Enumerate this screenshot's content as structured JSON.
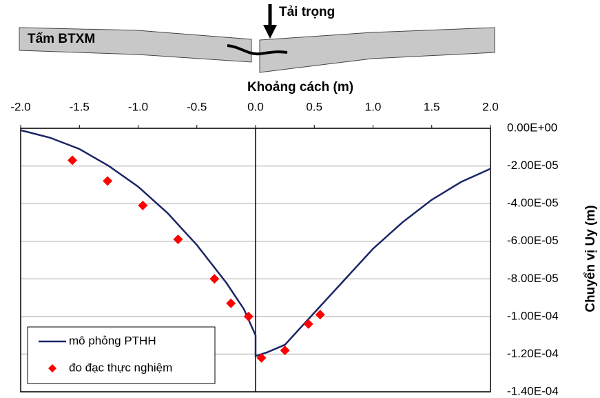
{
  "chart_data": {
    "type": "line-scatter",
    "annotations": [
      "Tấm BTXM",
      "Tải trọng"
    ],
    "xlabel": "Khoảng cách (m)",
    "ylabel": "Chuyển vị Uy (m)",
    "xlim": [
      -2,
      2
    ],
    "xticks": [
      {
        "value": -2,
        "label": "-2.0"
      },
      -1.5,
      {
        "value": -1,
        "label": "-1.0"
      },
      -0.5,
      {
        "value": 0,
        "label": "0.0"
      },
      0.5,
      {
        "value": 1,
        "label": "1.0"
      },
      1.5,
      {
        "value": 2,
        "label": "2.0"
      }
    ],
    "ylim": [
      -0.00014,
      0
    ],
    "yticks": [
      {
        "value": 0,
        "label": "0.00E+00"
      },
      {
        "value": -2e-05,
        "label": "-2.00E-05"
      },
      {
        "value": -4e-05,
        "label": "-4.00E-05"
      },
      {
        "value": -6e-05,
        "label": "-6.00E-05"
      },
      {
        "value": -8e-05,
        "label": "-8.00E-05"
      },
      {
        "value": -0.0001,
        "label": "-1.00E-04"
      },
      {
        "value": -0.00012,
        "label": "-1.20E-04"
      },
      {
        "value": -0.00014,
        "label": "-1.40E-04"
      }
    ],
    "grid": true,
    "legend": "lower-left",
    "series": [
      {
        "name": "mô phỏng PTHH",
        "kind": "line",
        "color": "#1b2566",
        "x": [
          -2,
          -1.75,
          -1.5,
          -1.25,
          -1,
          -0.75,
          -0.5,
          -0.25,
          -0.1,
          0,
          0,
          0.1,
          0.25,
          0.5,
          0.75,
          1,
          1.25,
          1.5,
          1.75,
          2
        ],
        "values": [
          -1e-06,
          -5e-06,
          -1.1e-05,
          -2e-05,
          -3.1e-05,
          -4.5e-05,
          -6.2e-05,
          -8.2e-05,
          -9.6e-05,
          -0.00011,
          -0.000121,
          -0.000119,
          -0.000115,
          -9.8e-05,
          -8.1e-05,
          -6.4e-05,
          -5e-05,
          -3.8e-05,
          -2.85e-05,
          -2.15e-05
        ]
      },
      {
        "name": "đo đạc thực nghiệm",
        "kind": "scatter",
        "color": "#ff0000",
        "x": [
          -1.56,
          -1.26,
          -0.96,
          -0.66,
          -0.35,
          -0.21,
          -0.06,
          0.05,
          0.25,
          0.45,
          0.55
        ],
        "values": [
          -1.7e-05,
          -2.8e-05,
          -4.1e-05,
          -5.9e-05,
          -8e-05,
          -9.3e-05,
          -0.0001,
          -0.000122,
          -0.000118,
          -0.000104,
          -9.9e-05
        ]
      }
    ]
  }
}
